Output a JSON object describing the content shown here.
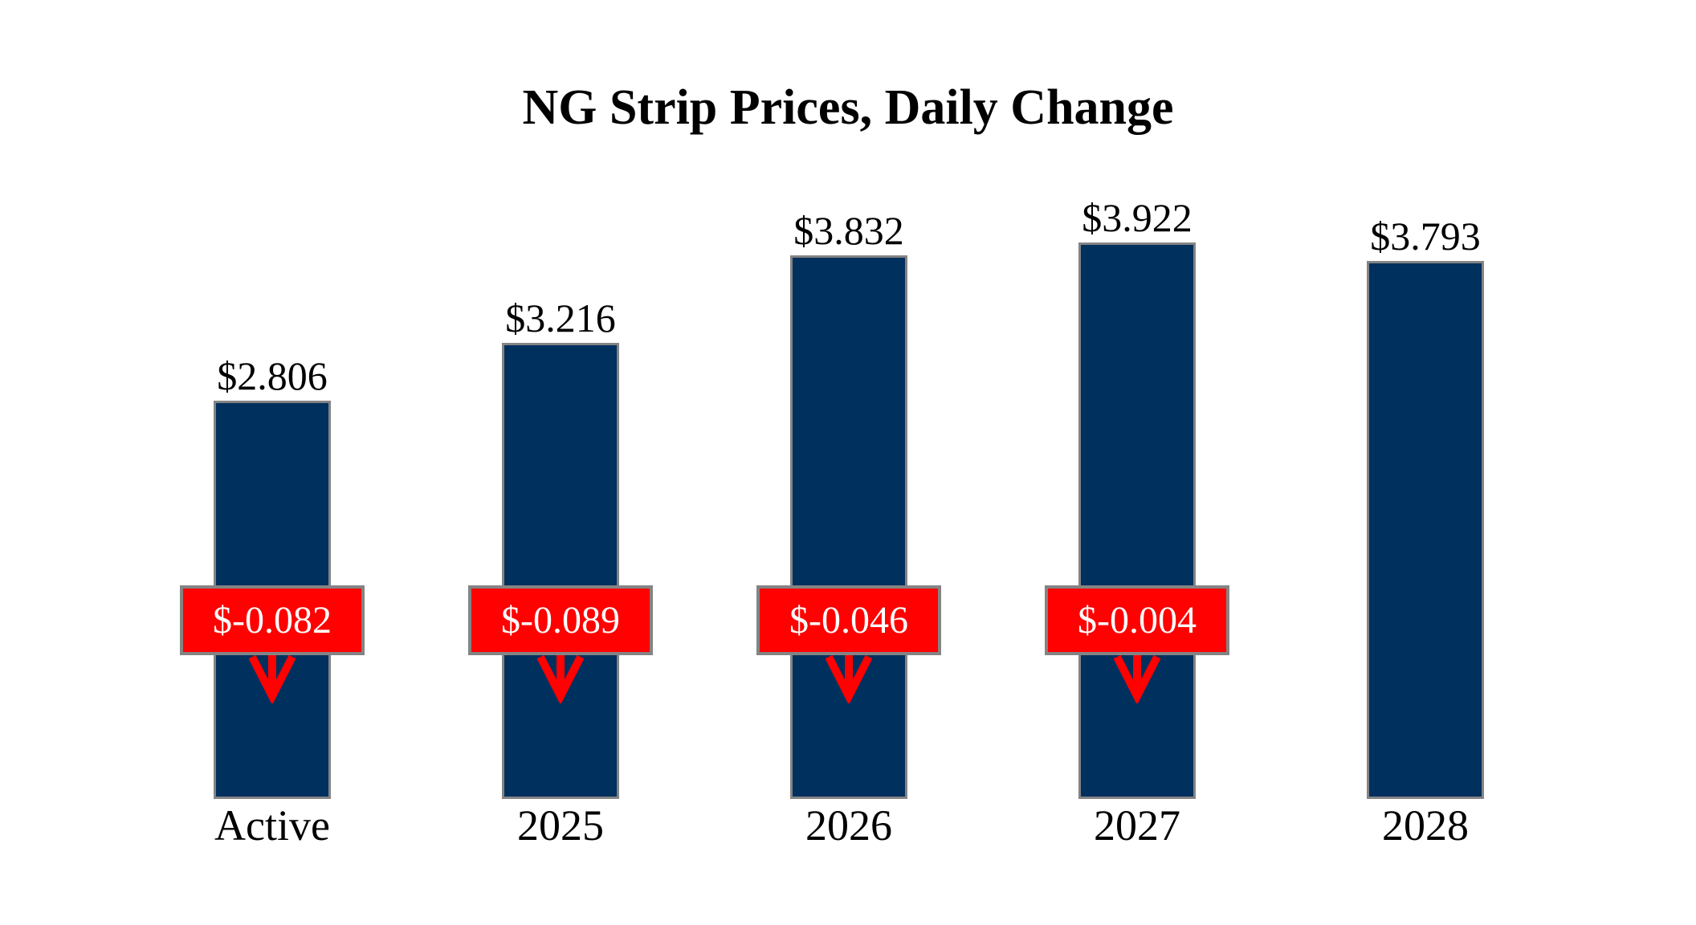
{
  "chart_data": {
    "type": "bar",
    "title": "NG Strip Prices, Daily Change",
    "categories": [
      "Active",
      "2025",
      "2026",
      "2027",
      "2028"
    ],
    "values": [
      2.806,
      3.216,
      3.832,
      3.922,
      3.793
    ],
    "bar_value_labels": [
      "$2.806",
      "$3.216",
      "$3.832",
      "$3.922",
      "$3.793"
    ],
    "daily_changes": [
      -0.082,
      -0.089,
      -0.046,
      -0.004,
      null
    ],
    "daily_change_labels": [
      "$-0.082",
      "$-0.089",
      "$-0.046",
      "$-0.004",
      null
    ],
    "xlabel": "",
    "ylabel": "",
    "ylim": [
      0,
      4.2
    ],
    "axes_visible": false,
    "gridlines": false,
    "legend_position": "none",
    "colors": {
      "bar_fill": "#00305e",
      "bar_border": "#848484",
      "change_badge_fill": "#ff0100",
      "change_badge_border": "#848484",
      "change_badge_text": "#ffffff",
      "arrow": "#ff0100",
      "text": "#000000",
      "background": "#ffffff"
    }
  }
}
